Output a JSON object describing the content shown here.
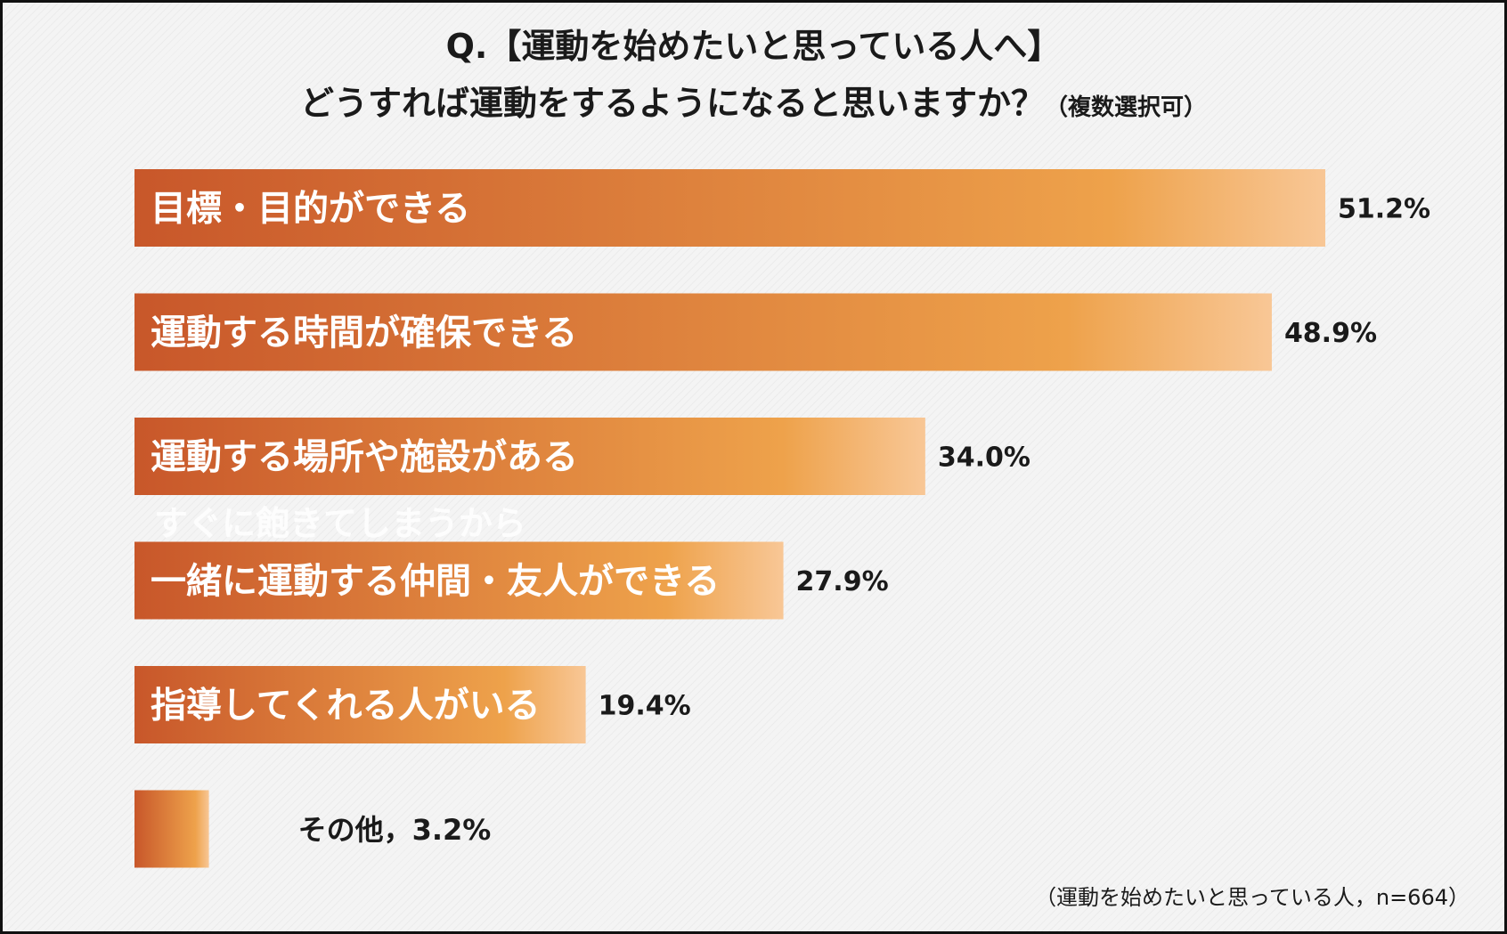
{
  "title_line1": "Q.【運動を始めたいと思っている人へ】",
  "title_line2": "どうすれば運動をするようになると思いますか？",
  "title_note": "（複数選択可）",
  "footnote": "（運動を始めたいと思っている人，n=664）",
  "ghost_label": "すぐに飽きてしまうから",
  "colors": {
    "bar_start": "#c8572a",
    "bar_mid": "#eea24b",
    "bar_end": "#f8c796"
  },
  "chart_data": {
    "type": "bar",
    "orientation": "horizontal",
    "unit": "%",
    "categories": [
      "目標・目的ができる",
      "運動する時間が確保できる",
      "運動する場所や施設がある",
      "一緒に運動する仲間・友人ができる",
      "指導してくれる人がいる",
      "その他"
    ],
    "values": [
      51.2,
      48.9,
      34.0,
      27.9,
      19.4,
      3.2
    ],
    "value_labels": [
      "51.2%",
      "48.9%",
      "34.0%",
      "27.9%",
      "19.4%",
      "3.2%"
    ],
    "outside_label_text": "その他，3.2%",
    "xlim": [
      0,
      51.2
    ],
    "grid": false
  }
}
